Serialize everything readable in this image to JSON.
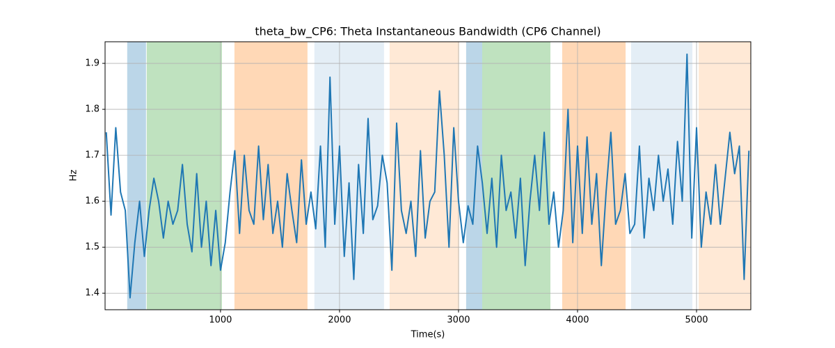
{
  "chart_data": {
    "type": "line",
    "title": "theta_bw_CP6: Theta Instantaneous Bandwidth (CP6 Channel)",
    "x_label": "Time(s)",
    "y_label": "Hz",
    "xlim": [
      30,
      5456
    ],
    "ylim": [
      1.364,
      1.947
    ],
    "xticks": [
      1000,
      2000,
      3000,
      4000,
      5000
    ],
    "yticks": [
      1.4,
      1.5,
      1.6,
      1.7,
      1.8,
      1.9
    ],
    "grid": true,
    "spans": [
      {
        "start": 216,
        "end": 374,
        "color": "#1f77b4",
        "alpha": 0.3
      },
      {
        "start": 380,
        "end": 1012,
        "color": "#2ca02c",
        "alpha": 0.3
      },
      {
        "start": 1117,
        "end": 1731,
        "color": "#ff7f0e",
        "alpha": 0.3
      },
      {
        "start": 1789,
        "end": 2374,
        "color": "#1f77b4",
        "alpha": 0.12
      },
      {
        "start": 2421,
        "end": 3006,
        "color": "#ff7f0e",
        "alpha": 0.17
      },
      {
        "start": 3064,
        "end": 3199,
        "color": "#1f77b4",
        "alpha": 0.3
      },
      {
        "start": 3199,
        "end": 3772,
        "color": "#2ca02c",
        "alpha": 0.3
      },
      {
        "start": 3871,
        "end": 4404,
        "color": "#ff7f0e",
        "alpha": 0.3
      },
      {
        "start": 4450,
        "end": 4965,
        "color": "#1f77b4",
        "alpha": 0.12
      },
      {
        "start": 5018,
        "end": 5456,
        "color": "#ff7f0e",
        "alpha": 0.17
      }
    ],
    "x": [
      40,
      80,
      120,
      160,
      200,
      240,
      280,
      320,
      360,
      400,
      440,
      480,
      520,
      560,
      600,
      640,
      680,
      720,
      760,
      800,
      840,
      880,
      920,
      960,
      1000,
      1040,
      1080,
      1120,
      1160,
      1200,
      1240,
      1280,
      1320,
      1360,
      1400,
      1440,
      1480,
      1520,
      1560,
      1600,
      1640,
      1680,
      1720,
      1760,
      1800,
      1840,
      1880,
      1920,
      1960,
      2000,
      2040,
      2080,
      2120,
      2160,
      2200,
      2240,
      2280,
      2320,
      2360,
      2400,
      2440,
      2480,
      2520,
      2560,
      2600,
      2640,
      2680,
      2720,
      2760,
      2800,
      2840,
      2880,
      2920,
      2960,
      3000,
      3040,
      3080,
      3120,
      3160,
      3200,
      3240,
      3280,
      3320,
      3360,
      3400,
      3440,
      3480,
      3520,
      3560,
      3600,
      3640,
      3680,
      3720,
      3760,
      3800,
      3840,
      3880,
      3920,
      3960,
      4000,
      4040,
      4080,
      4120,
      4160,
      4200,
      4240,
      4280,
      4320,
      4360,
      4400,
      4440,
      4480,
      4520,
      4560,
      4600,
      4640,
      4680,
      4720,
      4760,
      4800,
      4840,
      4880,
      4920,
      4960,
      5000,
      5040,
      5080,
      5120,
      5160,
      5200,
      5240,
      5280,
      5320,
      5360,
      5400,
      5440
    ],
    "series": [
      {
        "name": "theta_bw_CP6",
        "color": "#1f77b4",
        "values": [
          1.75,
          1.57,
          1.76,
          1.62,
          1.58,
          1.39,
          1.51,
          1.6,
          1.48,
          1.58,
          1.65,
          1.6,
          1.52,
          1.6,
          1.55,
          1.58,
          1.68,
          1.55,
          1.49,
          1.66,
          1.5,
          1.6,
          1.46,
          1.58,
          1.45,
          1.51,
          1.62,
          1.71,
          1.53,
          1.7,
          1.58,
          1.55,
          1.72,
          1.56,
          1.68,
          1.53,
          1.6,
          1.5,
          1.66,
          1.58,
          1.51,
          1.69,
          1.55,
          1.62,
          1.54,
          1.72,
          1.5,
          1.87,
          1.55,
          1.72,
          1.48,
          1.64,
          1.43,
          1.68,
          1.53,
          1.78,
          1.56,
          1.59,
          1.7,
          1.64,
          1.45,
          1.77,
          1.58,
          1.53,
          1.6,
          1.48,
          1.71,
          1.52,
          1.6,
          1.62,
          1.84,
          1.7,
          1.5,
          1.76,
          1.6,
          1.51,
          1.59,
          1.55,
          1.72,
          1.64,
          1.53,
          1.65,
          1.5,
          1.7,
          1.58,
          1.62,
          1.52,
          1.65,
          1.46,
          1.6,
          1.7,
          1.58,
          1.75,
          1.55,
          1.62,
          1.5,
          1.58,
          1.8,
          1.51,
          1.72,
          1.53,
          1.74,
          1.55,
          1.66,
          1.46,
          1.62,
          1.75,
          1.55,
          1.58,
          1.66,
          1.53,
          1.55,
          1.72,
          1.52,
          1.65,
          1.58,
          1.7,
          1.6,
          1.67,
          1.55,
          1.73,
          1.6,
          1.92,
          1.52,
          1.76,
          1.5,
          1.62,
          1.55,
          1.68,
          1.55,
          1.65,
          1.75,
          1.66,
          1.72,
          1.43,
          1.71
        ]
      }
    ]
  }
}
